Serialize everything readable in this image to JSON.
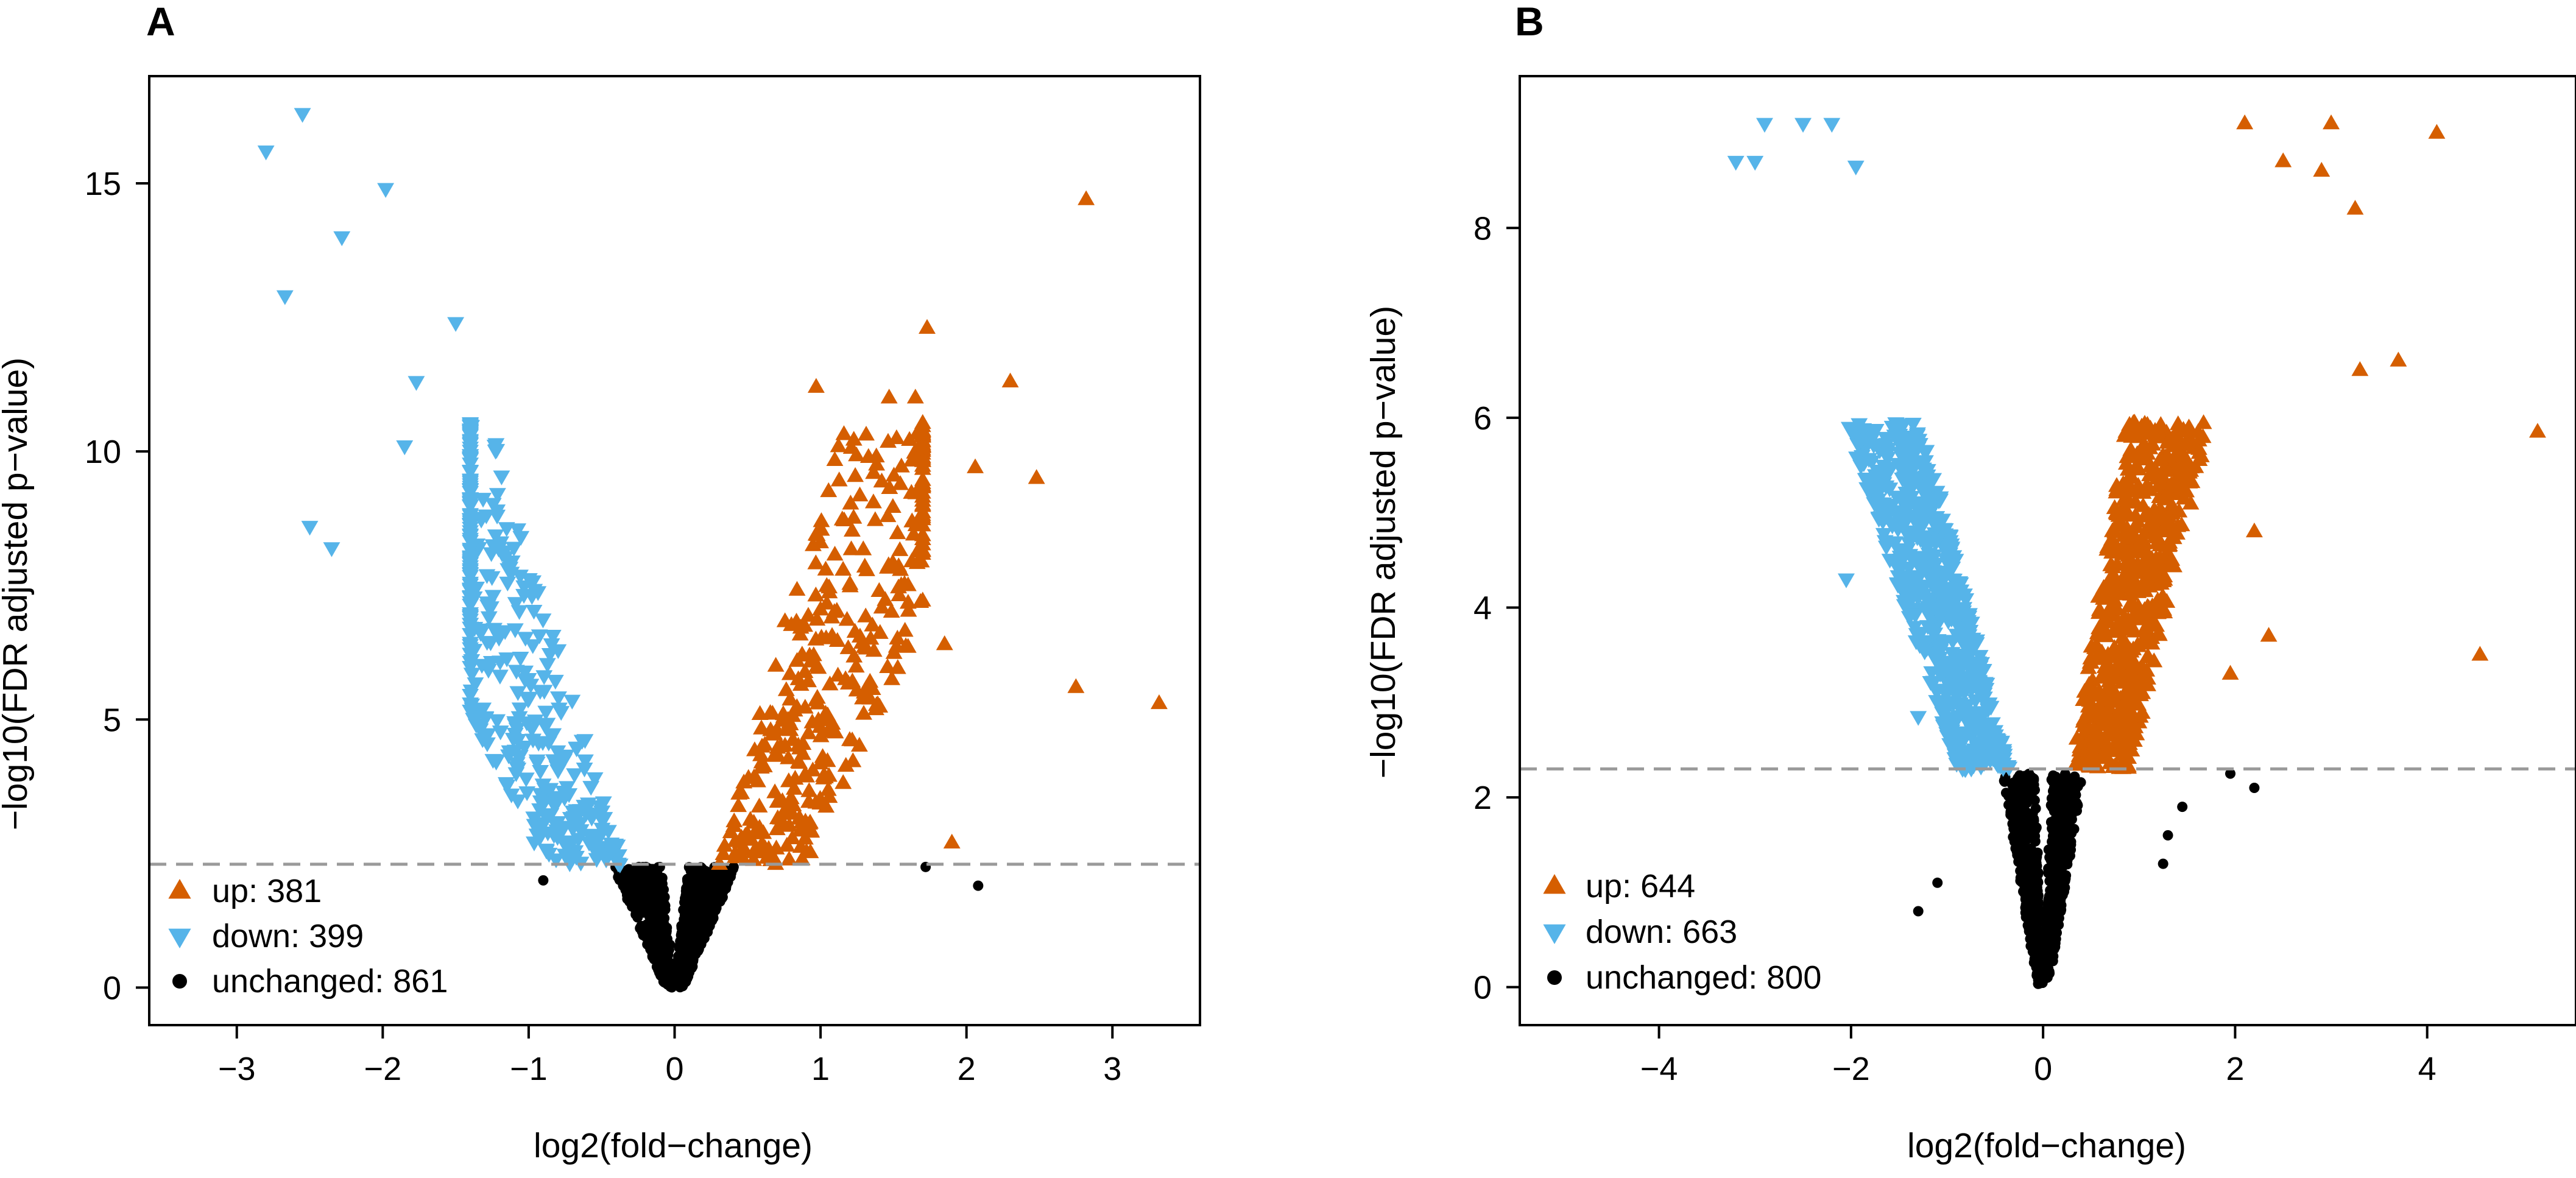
{
  "colors": {
    "up": "#D55E00",
    "down": "#56B4E9",
    "unchanged": "#000000",
    "threshold": "#9a9a9a"
  },
  "chart_data": [
    {
      "type": "scatter",
      "panel_label": "A",
      "title": "",
      "xlabel": "log2(fold−change)",
      "ylabel": "−log10(FDR adjusted p−value)",
      "xlim": [
        -3.6,
        3.6
      ],
      "ylim": [
        -0.7,
        17.0
      ],
      "xticks": [
        -3,
        -2,
        -1,
        0,
        1,
        2,
        3
      ],
      "xtick_labels": [
        "−3",
        "−2",
        "−1",
        "0",
        "1",
        "2",
        "3"
      ],
      "yticks": [
        0,
        5,
        10,
        15
      ],
      "ytick_labels": [
        "0",
        "5",
        "10",
        "15"
      ],
      "threshold_y": 2.3,
      "legend_position": "bottom-left",
      "legend": [
        {
          "category": "up",
          "label": "up: 381",
          "count": 381
        },
        {
          "category": "down",
          "label": "down: 399",
          "count": 399
        },
        {
          "category": "unchanged",
          "label": "unchanged: 861",
          "count": 861
        }
      ],
      "cloud": {
        "up_slope": 10.0,
        "down_slope": 9.0,
        "up_xmax": 1.7,
        "down_xmin": -1.4,
        "seed": 11
      },
      "series": [
        {
          "name": "up (highlighted)",
          "category": "up",
          "points": [
            [
              2.82,
              14.7
            ],
            [
              1.73,
              12.3
            ],
            [
              2.3,
              11.3
            ],
            [
              2.06,
              9.7
            ],
            [
              2.48,
              9.5
            ],
            [
              3.32,
              5.3
            ],
            [
              2.75,
              5.6
            ],
            [
              1.6,
              7.5
            ],
            [
              1.85,
              6.4
            ],
            [
              1.9,
              2.7
            ],
            [
              0.97,
              11.2
            ],
            [
              1.47,
              11.0
            ],
            [
              1.65,
              11.0
            ]
          ]
        },
        {
          "name": "down (highlighted)",
          "category": "down",
          "points": [
            [
              -2.55,
              16.3
            ],
            [
              -2.8,
              15.6
            ],
            [
              -1.98,
              14.9
            ],
            [
              -2.28,
              14.0
            ],
            [
              -2.67,
              12.9
            ],
            [
              -2.5,
              8.6
            ],
            [
              -2.35,
              8.2
            ],
            [
              -1.5,
              12.4
            ],
            [
              -1.85,
              10.1
            ],
            [
              -1.77,
              11.3
            ]
          ]
        },
        {
          "name": "unchanged (highlighted)",
          "category": "unchanged",
          "points": [
            [
              2.08,
              1.9
            ],
            [
              1.72,
              2.25
            ],
            [
              -0.9,
              2.0
            ]
          ]
        }
      ]
    },
    {
      "type": "scatter",
      "panel_label": "B",
      "title": "",
      "xlabel": "log2(fold−change)",
      "ylabel": "−log10(FDR adjusted p−value)",
      "xlim": [
        -5.45,
        5.55
      ],
      "ylim": [
        -0.4,
        9.6
      ],
      "xticks": [
        -4,
        -2,
        0,
        2,
        4
      ],
      "xtick_labels": [
        "−4",
        "−2",
        "0",
        "2",
        "4"
      ],
      "yticks": [
        0,
        2,
        4,
        6,
        8
      ],
      "ytick_labels": [
        "0",
        "2",
        "4",
        "6",
        "8"
      ],
      "threshold_y": 2.3,
      "legend_position": "bottom-left",
      "legend": [
        {
          "category": "up",
          "label": "up: 644",
          "count": 644
        },
        {
          "category": "down",
          "label": "down: 663",
          "count": 663
        },
        {
          "category": "unchanged",
          "label": "unchanged: 800",
          "count": 800
        }
      ],
      "cloud": {
        "up_slope": 6.5,
        "down_slope": 4.0,
        "up_xmax": 2.8,
        "down_xmin": -3.2,
        "seed": 29
      },
      "series": [
        {
          "name": "up (highlighted)",
          "category": "up",
          "points": [
            [
              4.1,
              9.0
            ],
            [
              5.15,
              5.85
            ],
            [
              4.55,
              3.5
            ],
            [
              3.0,
              9.1
            ],
            [
              3.25,
              8.2
            ],
            [
              3.3,
              6.5
            ],
            [
              3.7,
              6.6
            ],
            [
              2.1,
              9.1
            ],
            [
              2.5,
              8.7
            ],
            [
              2.9,
              8.6
            ],
            [
              2.2,
              4.8
            ],
            [
              2.35,
              3.7
            ],
            [
              1.95,
              3.3
            ]
          ]
        },
        {
          "name": "down (highlighted)",
          "category": "down",
          "points": [
            [
              -3.2,
              8.7
            ],
            [
              -2.9,
              9.1
            ],
            [
              -2.5,
              9.1
            ],
            [
              -2.2,
              9.1
            ],
            [
              -1.95,
              8.65
            ],
            [
              -3.0,
              8.7
            ],
            [
              -1.3,
              2.85
            ],
            [
              -1.7,
              5.1
            ],
            [
              -2.05,
              4.3
            ]
          ]
        },
        {
          "name": "unchanged (highlighted)",
          "category": "unchanged",
          "points": [
            [
              2.2,
              2.1
            ],
            [
              1.95,
              2.25
            ],
            [
              1.3,
              1.6
            ],
            [
              1.25,
              1.3
            ],
            [
              -1.3,
              0.8
            ],
            [
              -1.1,
              1.1
            ],
            [
              1.45,
              1.9
            ]
          ]
        }
      ]
    }
  ]
}
